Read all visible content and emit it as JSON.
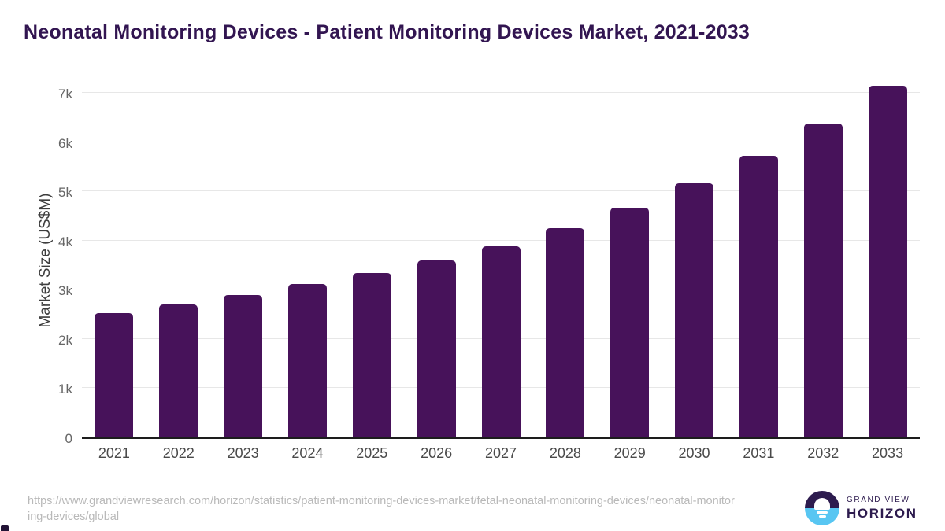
{
  "title": "Neonatal Monitoring Devices - Patient Monitoring Devices Market, 2021-2033",
  "chart_data": {
    "type": "bar",
    "categories": [
      "2021",
      "2022",
      "2023",
      "2024",
      "2025",
      "2026",
      "2027",
      "2028",
      "2029",
      "2030",
      "2031",
      "2032",
      "2033"
    ],
    "values": [
      2530,
      2700,
      2890,
      3120,
      3340,
      3590,
      3890,
      4250,
      4660,
      5160,
      5720,
      6370,
      7140
    ],
    "title": "Neonatal Monitoring Devices - Patient Monitoring Devices Market, 2021-2033",
    "xlabel": "",
    "ylabel": "Market Size (US$M)",
    "ylim": [
      0,
      7320
    ],
    "yticks": [
      {
        "value": 0,
        "label": "0"
      },
      {
        "value": 1000,
        "label": "1k"
      },
      {
        "value": 2000,
        "label": "2k"
      },
      {
        "value": 3000,
        "label": "3k"
      },
      {
        "value": 4000,
        "label": "4k"
      },
      {
        "value": 5000,
        "label": "5k"
      },
      {
        "value": 6000,
        "label": "6k"
      },
      {
        "value": 7000,
        "label": "7k"
      }
    ],
    "grid": true,
    "legend": false
  },
  "footer": {
    "source_url": "https://www.grandviewresearch.com/horizon/statistics/patient-monitoring-devices-market/fetal-neonatal-monitoring-devices/neonatal-monitoring-devices/global",
    "logo": {
      "line1": "GRAND VIEW",
      "line2": "HORIZON",
      "icon": "horizon-sunrise-icon"
    }
  },
  "colors": {
    "bar": "#47125a",
    "title": "#321551",
    "axis_line": "#1d1d1d",
    "gridline": "#e7e7e7",
    "ytick_label": "#666666",
    "xtick_label": "#4a4a4a",
    "y_axis_title": "#3d3d3d",
    "url_text": "#b9b9b9",
    "logo_dark": "#2d1b4e",
    "logo_blue": "#58c6f2",
    "background": "#ffffff"
  }
}
